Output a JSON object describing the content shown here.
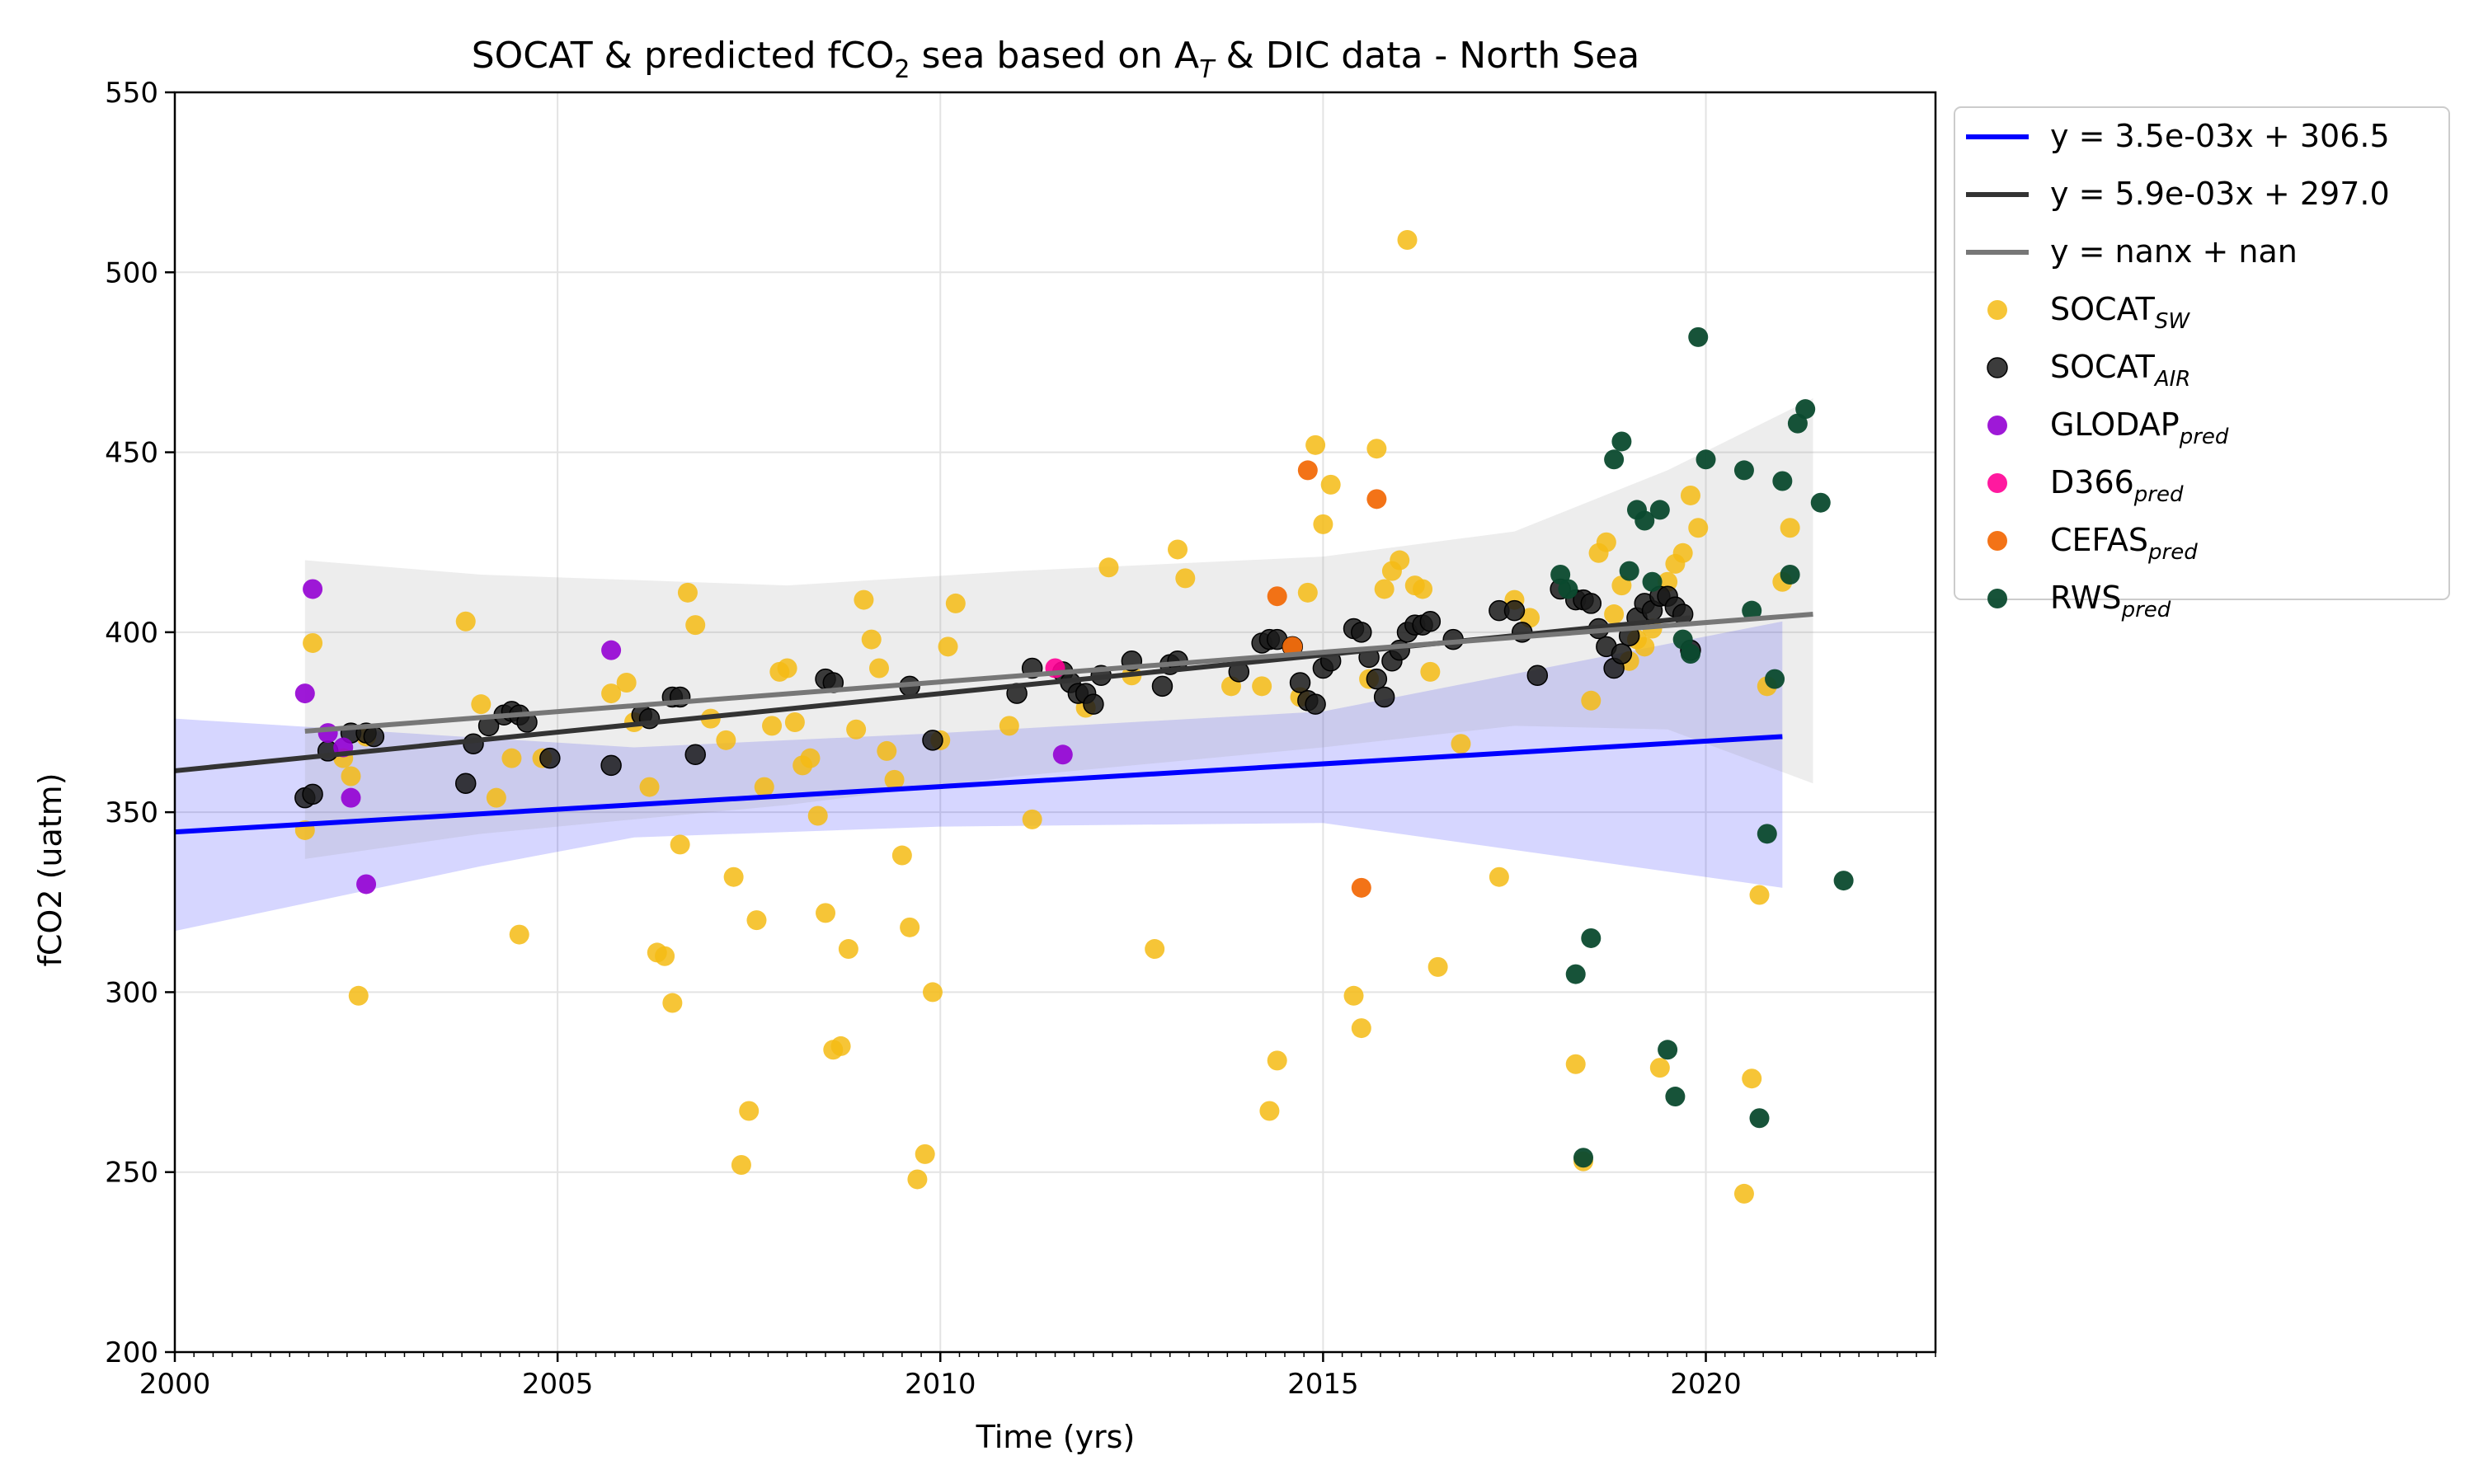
{
  "chart_data": {
    "type": "scatter",
    "title_prefix": "SOCAT & predicted fCO",
    "title_sub": "2",
    "title_mid": " sea based on A",
    "title_sub2": "T",
    "title_suffix": " & DIC data - North Sea",
    "xlabel": "Time (yrs)",
    "ylabel": "fCO2 (uatm)",
    "xlim": [
      2000,
      2023
    ],
    "ylim": [
      200,
      550
    ],
    "xticks": [
      {
        "v": 2000,
        "label": "2000"
      },
      {
        "v": 2005,
        "label": "2005"
      },
      {
        "v": 2010,
        "label": "2010"
      },
      {
        "v": 2015,
        "label": "2015"
      },
      {
        "v": 2020,
        "label": "2020"
      }
    ],
    "yticks": [
      {
        "v": 200,
        "label": "200"
      },
      {
        "v": 250,
        "label": "250"
      },
      {
        "v": 300,
        "label": "300"
      },
      {
        "v": 350,
        "label": "350"
      },
      {
        "v": 400,
        "label": "400"
      },
      {
        "v": 450,
        "label": "450"
      },
      {
        "v": 500,
        "label": "500"
      },
      {
        "v": 550,
        "label": "550"
      }
    ],
    "grid": true,
    "legend_position": "outside-upper-right",
    "bands": [
      {
        "name": "blue-ci",
        "color": "#0000ff",
        "opacity": 0.16,
        "upper": [
          [
            2000,
            376
          ],
          [
            2006,
            368
          ],
          [
            2010,
            372
          ],
          [
            2015,
            378
          ],
          [
            2021,
            403
          ]
        ],
        "lower": [
          [
            2000,
            317
          ],
          [
            2004,
            335
          ],
          [
            2006,
            343
          ],
          [
            2010,
            346
          ],
          [
            2015,
            347
          ],
          [
            2021,
            329
          ]
        ]
      },
      {
        "name": "gray-ci",
        "color": "#9a9a9a",
        "opacity": 0.18,
        "upper": [
          [
            2001.7,
            420
          ],
          [
            2004,
            416
          ],
          [
            2008,
            413
          ],
          [
            2011,
            417
          ],
          [
            2015,
            421
          ],
          [
            2017.5,
            428
          ],
          [
            2019.5,
            445
          ],
          [
            2021.4,
            465
          ]
        ],
        "lower": [
          [
            2001.7,
            337
          ],
          [
            2004,
            344
          ],
          [
            2008,
            352
          ],
          [
            2011,
            360
          ],
          [
            2015,
            368
          ],
          [
            2017.5,
            374
          ],
          [
            2019.5,
            373
          ],
          [
            2021.4,
            358
          ]
        ]
      }
    ],
    "fit_lines": [
      {
        "name": "blue-fit",
        "label": "y = 3.5e-03x + 306.5",
        "color": "#0000ff",
        "width": 6,
        "x": [
          2000,
          2021
        ],
        "y": [
          344.5,
          371
        ]
      },
      {
        "name": "dark-fit",
        "label": "y = 5.9e-03x + 297.0",
        "color": "#333333",
        "width": 6,
        "x": [
          2000,
          2019.8
        ],
        "y": [
          361.5,
          404
        ]
      },
      {
        "name": "gray-fit",
        "label": "y = nanx + nan",
        "color": "#777777",
        "width": 6,
        "x": [
          2001.7,
          2021.4
        ],
        "y": [
          372.5,
          405
        ]
      }
    ],
    "series": [
      {
        "name": "SOCAT_SW",
        "legend_main": "SOCAT",
        "legend_sub": "SW",
        "color": "#f5bb14",
        "opacity": 0.85,
        "edge": "none",
        "points": [
          [
            2001.7,
            345
          ],
          [
            2001.8,
            397
          ],
          [
            2002.2,
            365
          ],
          [
            2002.3,
            360
          ],
          [
            2002.4,
            299
          ],
          [
            2002.5,
            371
          ],
          [
            2003.8,
            403
          ],
          [
            2004.0,
            380
          ],
          [
            2004.2,
            354
          ],
          [
            2004.4,
            365
          ],
          [
            2004.5,
            316
          ],
          [
            2004.8,
            365
          ],
          [
            2005.7,
            383
          ],
          [
            2005.9,
            386
          ],
          [
            2006.0,
            375
          ],
          [
            2006.2,
            357
          ],
          [
            2006.3,
            311
          ],
          [
            2006.4,
            310
          ],
          [
            2006.5,
            297
          ],
          [
            2006.6,
            341
          ],
          [
            2006.7,
            411
          ],
          [
            2006.8,
            402
          ],
          [
            2007.0,
            376
          ],
          [
            2007.2,
            370
          ],
          [
            2007.3,
            332
          ],
          [
            2007.4,
            252
          ],
          [
            2007.5,
            267
          ],
          [
            2007.6,
            320
          ],
          [
            2007.7,
            357
          ],
          [
            2007.8,
            374
          ],
          [
            2007.9,
            389
          ],
          [
            2008.0,
            390
          ],
          [
            2008.1,
            375
          ],
          [
            2008.2,
            363
          ],
          [
            2008.3,
            365
          ],
          [
            2008.4,
            349
          ],
          [
            2008.5,
            322
          ],
          [
            2008.6,
            284
          ],
          [
            2008.7,
            285
          ],
          [
            2008.8,
            312
          ],
          [
            2008.9,
            373
          ],
          [
            2009.0,
            409
          ],
          [
            2009.1,
            398
          ],
          [
            2009.2,
            390
          ],
          [
            2009.3,
            367
          ],
          [
            2009.4,
            359
          ],
          [
            2009.5,
            338
          ],
          [
            2009.6,
            318
          ],
          [
            2009.7,
            248
          ],
          [
            2009.8,
            255
          ],
          [
            2009.9,
            300
          ],
          [
            2010.0,
            370
          ],
          [
            2010.1,
            396
          ],
          [
            2010.2,
            408
          ],
          [
            2010.9,
            374
          ],
          [
            2011.2,
            348
          ],
          [
            2011.9,
            379
          ],
          [
            2012.2,
            418
          ],
          [
            2012.5,
            388
          ],
          [
            2012.8,
            312
          ],
          [
            2013.1,
            423
          ],
          [
            2013.2,
            415
          ],
          [
            2013.8,
            385
          ],
          [
            2014.2,
            385
          ],
          [
            2014.3,
            267
          ],
          [
            2014.4,
            281
          ],
          [
            2014.7,
            382
          ],
          [
            2014.8,
            411
          ],
          [
            2014.9,
            452
          ],
          [
            2015.0,
            430
          ],
          [
            2015.1,
            441
          ],
          [
            2015.4,
            299
          ],
          [
            2015.5,
            290
          ],
          [
            2015.6,
            387
          ],
          [
            2015.7,
            451
          ],
          [
            2015.8,
            412
          ],
          [
            2015.9,
            417
          ],
          [
            2016.0,
            420
          ],
          [
            2016.1,
            509
          ],
          [
            2016.2,
            413
          ],
          [
            2016.3,
            412
          ],
          [
            2016.4,
            389
          ],
          [
            2016.5,
            307
          ],
          [
            2016.8,
            369
          ],
          [
            2017.3,
            332
          ],
          [
            2017.5,
            409
          ],
          [
            2017.7,
            404
          ],
          [
            2018.3,
            280
          ],
          [
            2018.4,
            253
          ],
          [
            2018.5,
            381
          ],
          [
            2018.6,
            422
          ],
          [
            2018.7,
            425
          ],
          [
            2018.8,
            405
          ],
          [
            2018.9,
            413
          ],
          [
            2019.0,
            392
          ],
          [
            2019.1,
            398
          ],
          [
            2019.2,
            396
          ],
          [
            2019.3,
            401
          ],
          [
            2019.4,
            279
          ],
          [
            2019.5,
            414
          ],
          [
            2019.6,
            419
          ],
          [
            2019.7,
            422
          ],
          [
            2019.8,
            438
          ],
          [
            2019.9,
            429
          ],
          [
            2020.5,
            244
          ],
          [
            2020.6,
            276
          ],
          [
            2020.7,
            327
          ],
          [
            2020.8,
            385
          ],
          [
            2021.0,
            414
          ],
          [
            2021.1,
            429
          ]
        ]
      },
      {
        "name": "SOCAT_AIR",
        "legend_main": "SOCAT",
        "legend_sub": "AIR",
        "color": "#1a1a1a",
        "opacity": 0.85,
        "edge": "#000000",
        "points": [
          [
            2001.7,
            354
          ],
          [
            2001.8,
            355
          ],
          [
            2002.0,
            367
          ],
          [
            2002.3,
            372
          ],
          [
            2002.5,
            372
          ],
          [
            2002.6,
            371
          ],
          [
            2003.8,
            358
          ],
          [
            2003.9,
            369
          ],
          [
            2004.1,
            374
          ],
          [
            2004.3,
            377
          ],
          [
            2004.4,
            378
          ],
          [
            2004.5,
            377
          ],
          [
            2004.6,
            375
          ],
          [
            2004.9,
            365
          ],
          [
            2005.7,
            363
          ],
          [
            2006.1,
            377
          ],
          [
            2006.2,
            376
          ],
          [
            2006.5,
            382
          ],
          [
            2006.6,
            382
          ],
          [
            2006.8,
            366
          ],
          [
            2008.5,
            387
          ],
          [
            2008.6,
            386
          ],
          [
            2009.6,
            385
          ],
          [
            2009.9,
            370
          ],
          [
            2011.0,
            383
          ],
          [
            2011.2,
            390
          ],
          [
            2011.6,
            389
          ],
          [
            2011.7,
            386
          ],
          [
            2011.8,
            383
          ],
          [
            2011.9,
            383
          ],
          [
            2012.0,
            380
          ],
          [
            2012.1,
            388
          ],
          [
            2012.5,
            392
          ],
          [
            2012.9,
            385
          ],
          [
            2013.0,
            391
          ],
          [
            2013.1,
            392
          ],
          [
            2013.9,
            389
          ],
          [
            2014.2,
            397
          ],
          [
            2014.3,
            398
          ],
          [
            2014.4,
            398
          ],
          [
            2014.6,
            396
          ],
          [
            2014.7,
            386
          ],
          [
            2014.8,
            381
          ],
          [
            2014.9,
            380
          ],
          [
            2015.0,
            390
          ],
          [
            2015.1,
            392
          ],
          [
            2015.4,
            401
          ],
          [
            2015.5,
            400
          ],
          [
            2015.6,
            393
          ],
          [
            2015.7,
            387
          ],
          [
            2015.8,
            382
          ],
          [
            2015.9,
            392
          ],
          [
            2016.0,
            395
          ],
          [
            2016.1,
            400
          ],
          [
            2016.2,
            402
          ],
          [
            2016.3,
            402
          ],
          [
            2016.4,
            403
          ],
          [
            2016.7,
            398
          ],
          [
            2017.3,
            406
          ],
          [
            2017.5,
            406
          ],
          [
            2017.6,
            400
          ],
          [
            2017.8,
            388
          ],
          [
            2018.1,
            412
          ],
          [
            2018.3,
            409
          ],
          [
            2018.4,
            409
          ],
          [
            2018.5,
            408
          ],
          [
            2018.6,
            401
          ],
          [
            2018.7,
            396
          ],
          [
            2018.8,
            390
          ],
          [
            2018.9,
            394
          ],
          [
            2019.0,
            399
          ],
          [
            2019.1,
            404
          ],
          [
            2019.2,
            408
          ],
          [
            2019.3,
            406
          ],
          [
            2019.4,
            410
          ],
          [
            2019.5,
            410
          ],
          [
            2019.6,
            407
          ],
          [
            2019.7,
            405
          ],
          [
            2019.8,
            395
          ]
        ]
      },
      {
        "name": "GLODAP_pred",
        "legend_main": "GLODAP",
        "legend_sub": "pred",
        "color": "#9400d3",
        "opacity": 0.9,
        "edge": "none",
        "points": [
          [
            2001.7,
            383
          ],
          [
            2001.8,
            412
          ],
          [
            2002.0,
            372
          ],
          [
            2002.2,
            368
          ],
          [
            2002.3,
            354
          ],
          [
            2002.5,
            330
          ],
          [
            2005.7,
            395
          ],
          [
            2011.6,
            366
          ]
        ]
      },
      {
        "name": "D366_pred",
        "legend_main": "D366",
        "legend_sub": "pred",
        "color": "#ff0095",
        "opacity": 0.9,
        "edge": "none",
        "points": [
          [
            2011.5,
            390
          ]
        ]
      },
      {
        "name": "CEFAS_pred",
        "legend_main": "CEFAS",
        "legend_sub": "pred",
        "color": "#f26b0b",
        "opacity": 0.95,
        "edge": "none",
        "points": [
          [
            2014.4,
            410
          ],
          [
            2014.6,
            396
          ],
          [
            2014.8,
            445
          ],
          [
            2015.5,
            329
          ],
          [
            2015.7,
            437
          ]
        ]
      },
      {
        "name": "RWS_pred",
        "legend_main": "RWS",
        "legend_sub": "pred",
        "color": "#0b4a2e",
        "opacity": 0.95,
        "edge": "none",
        "points": [
          [
            2018.1,
            416
          ],
          [
            2018.2,
            412
          ],
          [
            2018.3,
            305
          ],
          [
            2018.4,
            254
          ],
          [
            2018.5,
            315
          ],
          [
            2018.8,
            448
          ],
          [
            2018.9,
            453
          ],
          [
            2019.0,
            417
          ],
          [
            2019.1,
            434
          ],
          [
            2019.2,
            431
          ],
          [
            2019.3,
            414
          ],
          [
            2019.4,
            434
          ],
          [
            2019.5,
            284
          ],
          [
            2019.6,
            271
          ],
          [
            2019.7,
            398
          ],
          [
            2019.8,
            394
          ],
          [
            2019.9,
            482
          ],
          [
            2020.0,
            448
          ],
          [
            2020.5,
            445
          ],
          [
            2020.6,
            406
          ],
          [
            2020.7,
            265
          ],
          [
            2020.8,
            344
          ],
          [
            2020.9,
            387
          ],
          [
            2021.0,
            442
          ],
          [
            2021.1,
            416
          ],
          [
            2021.2,
            458
          ],
          [
            2021.3,
            462
          ],
          [
            2021.5,
            436
          ],
          [
            2021.8,
            331
          ]
        ]
      }
    ]
  }
}
